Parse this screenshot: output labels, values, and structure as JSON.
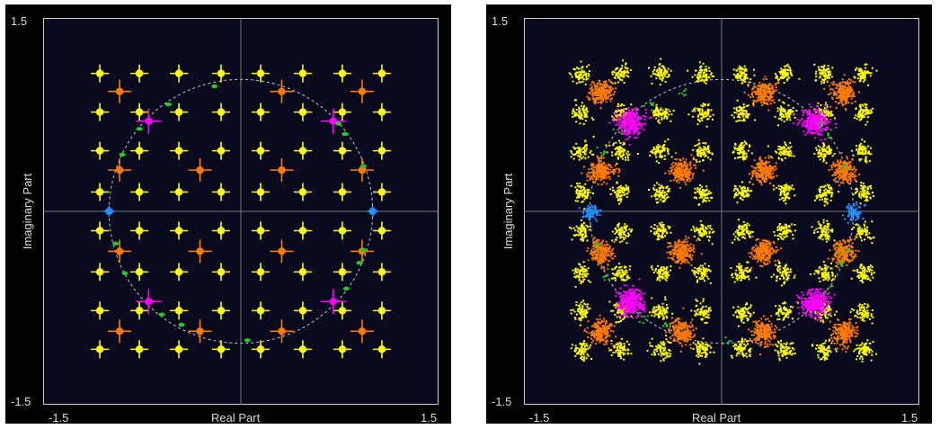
{
  "colors": {
    "background": "#000000",
    "plot_area": "#0a0a1e",
    "axis_line": "#cfcfcf",
    "crosshair": "#7a7a7a",
    "label_text": "#dcdcdc",
    "yellow": "#ffff00",
    "orange": "#ff7a00",
    "magenta": "#ff00ff",
    "blue": "#1e90ff",
    "green": "#22cc22",
    "circle": "#c8c8c8"
  },
  "chart_data": [
    {
      "type": "scatter",
      "title": "",
      "xlabel": "Real Part",
      "ylabel": "Imaginary Part",
      "xlim": [
        -1.5,
        1.5
      ],
      "ylim": [
        -1.5,
        1.5
      ],
      "tick_labels": {
        "xmin": "-1.5",
        "xmax": "1.5",
        "ymin": "-1.5",
        "ymax": "1.5"
      },
      "grid": false,
      "crosshair_at_origin": true,
      "reference_circle_radius": 1.0,
      "markers": "crosshair",
      "grid_levels": [
        -1.07,
        -0.77,
        -0.47,
        -0.15,
        0.15,
        0.47,
        0.77,
        1.07
      ],
      "series": [
        {
          "color_key": "yellow",
          "description_points": "remaining 8x8 grid points"
        },
        {
          "color_key": "orange",
          "points": [
            [
              -0.92,
              0.93
            ],
            [
              0.31,
              0.93
            ],
            [
              0.92,
              0.93
            ],
            [
              -0.92,
              0.32
            ],
            [
              -0.31,
              0.32
            ],
            [
              0.31,
              0.32
            ],
            [
              0.92,
              0.32
            ],
            [
              -0.92,
              -0.31
            ],
            [
              -0.31,
              -0.31
            ],
            [
              0.31,
              -0.31
            ],
            [
              0.92,
              -0.31
            ],
            [
              -0.92,
              -0.93
            ],
            [
              -0.31,
              -0.93
            ],
            [
              0.31,
              -0.93
            ],
            [
              0.92,
              -0.93
            ]
          ]
        },
        {
          "color_key": "magenta",
          "points": [
            [
              -0.7,
              0.7
            ],
            [
              0.7,
              0.7
            ],
            [
              -0.7,
              -0.7
            ],
            [
              0.7,
              -0.7
            ]
          ]
        },
        {
          "color_key": "blue",
          "points": [
            [
              -1.0,
              0.0
            ],
            [
              1.0,
              0.0
            ]
          ]
        },
        {
          "color_key": "green",
          "points": [
            [
              -0.77,
              0.64
            ],
            [
              -0.55,
              0.83
            ],
            [
              -0.2,
              0.97
            ],
            [
              -0.9,
              0.44
            ],
            [
              0.74,
              0.68
            ],
            [
              0.79,
              0.6
            ],
            [
              0.93,
              0.35
            ],
            [
              -0.95,
              -0.25
            ],
            [
              -0.88,
              -0.48
            ],
            [
              0.93,
              -0.3
            ],
            [
              0.9,
              -0.4
            ],
            [
              0.8,
              -0.6
            ],
            [
              -0.6,
              -0.8
            ],
            [
              -0.45,
              -0.88
            ],
            [
              0.05,
              -1.0
            ]
          ]
        }
      ]
    },
    {
      "type": "scatter",
      "title": "",
      "xlabel": "Real Part",
      "ylabel": "Imaginary Part",
      "xlim": [
        -1.5,
        1.5
      ],
      "ylim": [
        -1.5,
        1.5
      ],
      "tick_labels": {
        "xmin": "-1.5",
        "xmax": "1.5",
        "ymin": "-1.5",
        "ymax": "1.5"
      },
      "grid": false,
      "crosshair_at_origin": true,
      "reference_circle_radius": 1.0,
      "markers": "noisy clusters",
      "grid_levels": [
        -1.07,
        -0.77,
        -0.47,
        -0.15,
        0.15,
        0.47,
        0.77,
        1.07
      ],
      "series": [
        {
          "color_key": "yellow",
          "description_points": "remaining 8x8 grid points"
        },
        {
          "color_key": "orange",
          "points": [
            [
              -0.92,
              0.93
            ],
            [
              0.31,
              0.93
            ],
            [
              0.92,
              0.93
            ],
            [
              -0.92,
              0.32
            ],
            [
              -0.31,
              0.32
            ],
            [
              0.31,
              0.32
            ],
            [
              0.92,
              0.32
            ],
            [
              -0.92,
              -0.31
            ],
            [
              -0.31,
              -0.31
            ],
            [
              0.31,
              -0.31
            ],
            [
              0.92,
              -0.31
            ],
            [
              -0.92,
              -0.93
            ],
            [
              -0.31,
              -0.93
            ],
            [
              0.31,
              -0.93
            ],
            [
              0.92,
              -0.93
            ]
          ]
        },
        {
          "color_key": "magenta",
          "points": [
            [
              -0.7,
              0.7
            ],
            [
              0.7,
              0.7
            ],
            [
              -0.7,
              -0.7
            ],
            [
              0.7,
              -0.7
            ]
          ]
        },
        {
          "color_key": "blue",
          "points": [
            [
              -1.0,
              0.0
            ],
            [
              1.0,
              0.0
            ]
          ]
        },
        {
          "color_key": "green",
          "points": [
            [
              -0.77,
              0.64
            ],
            [
              -0.55,
              0.83
            ],
            [
              -0.3,
              0.92
            ],
            [
              -0.9,
              0.44
            ],
            [
              0.74,
              0.68
            ],
            [
              0.79,
              0.6
            ],
            [
              0.93,
              0.35
            ],
            [
              -0.95,
              -0.25
            ],
            [
              -0.88,
              -0.48
            ],
            [
              0.93,
              -0.3
            ],
            [
              0.9,
              -0.4
            ],
            [
              0.8,
              -0.6
            ],
            [
              -0.6,
              -0.8
            ],
            [
              -0.45,
              -0.88
            ],
            [
              0.05,
              -1.0
            ]
          ]
        }
      ]
    }
  ]
}
